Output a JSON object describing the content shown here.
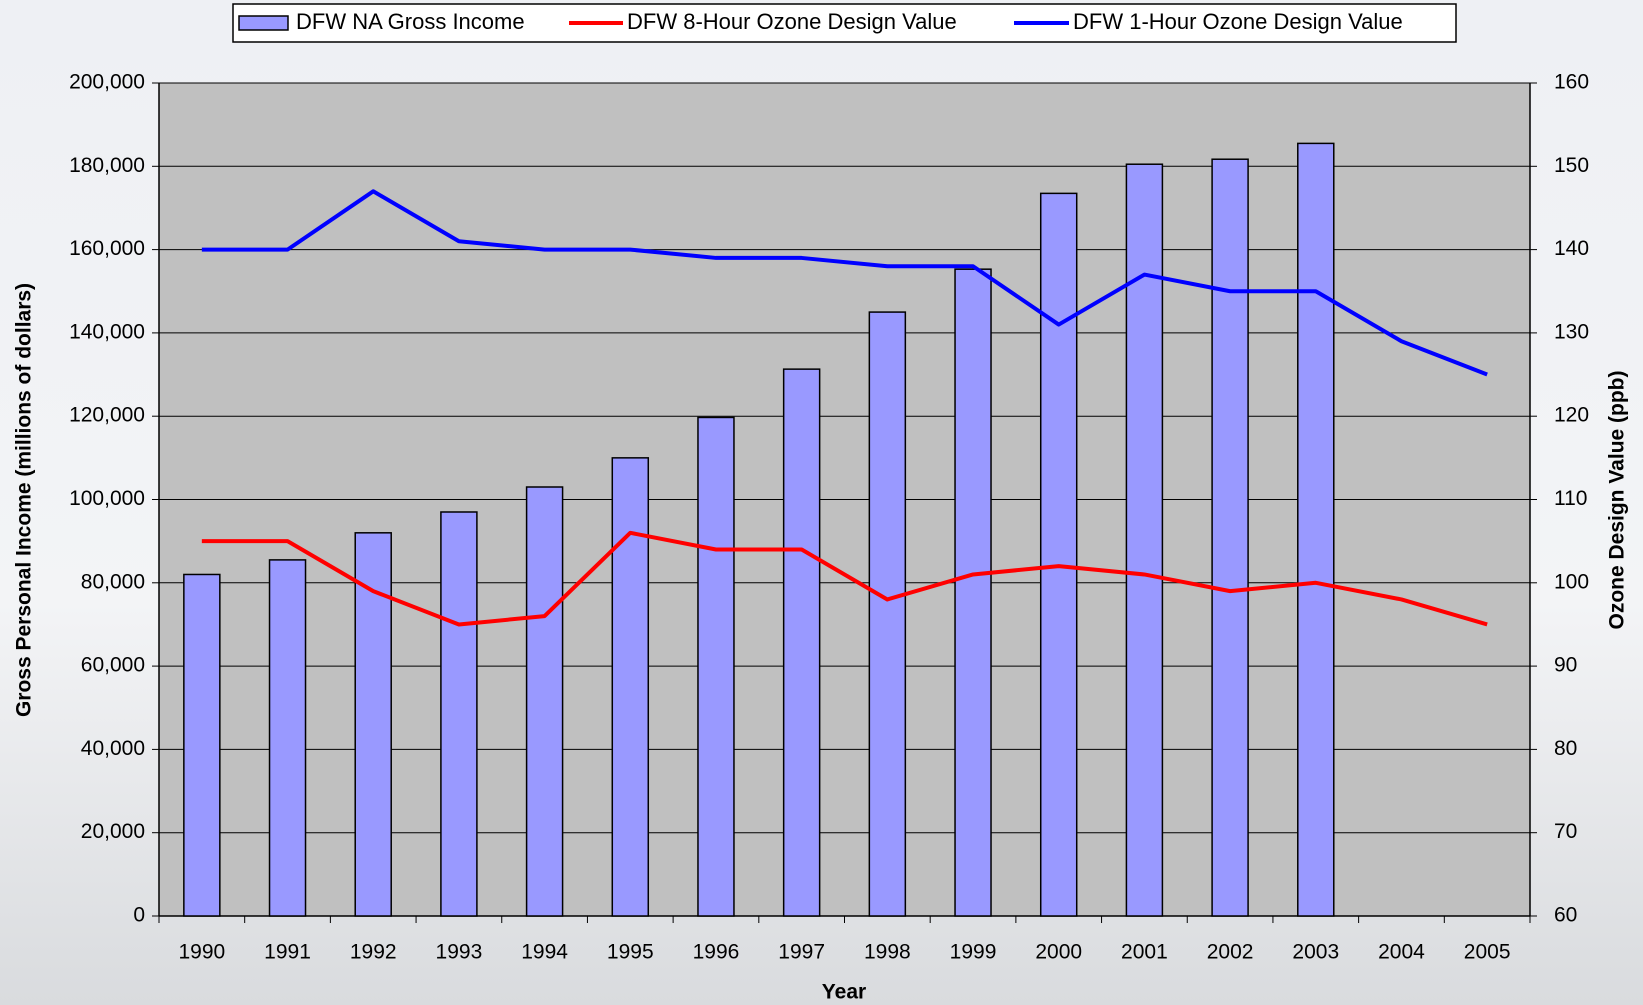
{
  "chart_data": {
    "type": "bar",
    "x_label": "Year",
    "y_label": "Gross Personal Income (millions of dollars)",
    "y2_label": "Ozone Design Value (ppb)",
    "categories": [
      "1990",
      "1991",
      "1992",
      "1993",
      "1994",
      "1995",
      "1996",
      "1997",
      "1998",
      "1999",
      "2000",
      "2001",
      "2002",
      "2003",
      "2004",
      "2005"
    ],
    "series": [
      {
        "name": "DFW NA Gross Income",
        "type": "bar",
        "color": "#9999ff",
        "values": [
          82000,
          85500,
          92000,
          97000,
          103000,
          110000,
          119700,
          131300,
          145000,
          155300,
          173500,
          180500,
          181700,
          185500,
          null,
          null
        ]
      },
      {
        "name": "DFW 8-Hour Ozone Design Value",
        "type": "line",
        "axis": "y2",
        "color": "#ff0000",
        "values": [
          105,
          105,
          99,
          95,
          96,
          106,
          104,
          104,
          98,
          101,
          102,
          101,
          99,
          100,
          98,
          95
        ]
      },
      {
        "name": "DFW 1-Hour Ozone Design Value",
        "type": "line",
        "axis": "y2",
        "color": "#0000ff",
        "values": [
          140,
          140,
          147,
          141,
          140,
          140,
          139,
          139,
          138,
          138,
          131,
          137,
          135,
          135,
          129,
          125
        ]
      }
    ],
    "ylim": [
      0,
      200000
    ],
    "yticks": [
      0,
      {
        "value": 20000,
        "label": "20,000"
      },
      {
        "value": 40000,
        "label": "40,000"
      },
      {
        "value": 60000,
        "label": "60,000"
      },
      {
        "value": 80000,
        "label": "80,000"
      },
      {
        "value": 100000,
        "label": "100,000"
      },
      {
        "value": 120000,
        "label": "120,000"
      },
      {
        "value": 140000,
        "label": "140,000"
      },
      {
        "value": 160000,
        "label": "160,000"
      },
      {
        "value": 180000,
        "label": "180,000"
      },
      {
        "value": 200000,
        "label": "200,000"
      }
    ],
    "y2lim": [
      60,
      160
    ],
    "y2ticks": [
      60,
      70,
      80,
      90,
      100,
      110,
      120,
      130,
      140,
      150,
      160
    ],
    "grid": true,
    "legend": "top"
  }
}
